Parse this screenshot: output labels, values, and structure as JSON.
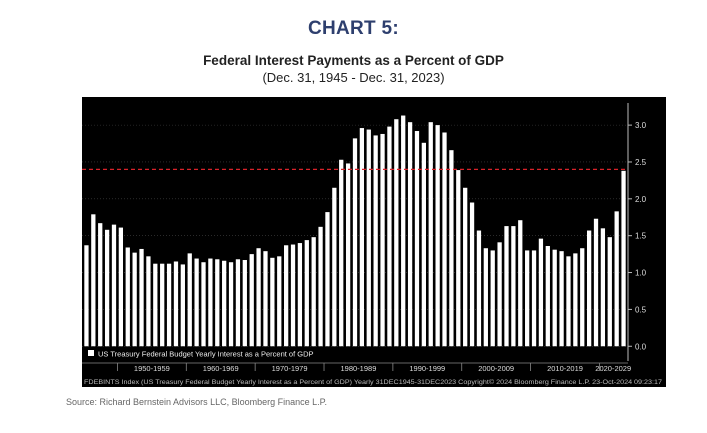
{
  "header": {
    "heading": "CHART 5:",
    "title": "Federal Interest Payments as a Percent of GDP",
    "subtitle": "(Dec. 31, 1945 - Dec. 31, 2023)"
  },
  "source": "Source: Richard Bernstein Advisors LLC, Bloomberg Finance L.P.",
  "chart_data": {
    "type": "bar",
    "legend": {
      "label": "US Treasury Federal Budget Yearly Interest as a Percent of GDP",
      "placement": "bottom-left"
    },
    "footer_text": "FDEBINTS Index (US Treasury Federal Budget Yearly Interest as a Percent of GDP)  Yearly 31DEC1945-31DEC2023   Copyright© 2024 Bloomberg Finance L.P.   23-Oct-2024 09:23:17",
    "y_axis": {
      "side": "right",
      "ylim": [
        -0.2,
        3.3
      ],
      "ticks": [
        0.0,
        0.5,
        1.0,
        1.5,
        2.0,
        2.5,
        3.0
      ],
      "tick_labels": [
        "0.0",
        "0.5",
        "1.0",
        "1.5",
        "2.0",
        "2.5",
        "3.0"
      ]
    },
    "reference_line": {
      "value": 2.4,
      "style": "dashed",
      "color": "#d9232a"
    },
    "decades": [
      "1950-1959",
      "1960-1969",
      "1970-1979",
      "1980-1989",
      "1990-1999",
      "2000-2009",
      "2010-2019",
      "2020-2029"
    ],
    "x_start": 1945,
    "x_end": 2023,
    "values": [
      1.37,
      1.79,
      1.67,
      1.58,
      1.65,
      1.61,
      1.34,
      1.27,
      1.32,
      1.22,
      1.12,
      1.12,
      1.12,
      1.15,
      1.11,
      1.26,
      1.19,
      1.14,
      1.19,
      1.18,
      1.16,
      1.14,
      1.18,
      1.17,
      1.25,
      1.33,
      1.29,
      1.2,
      1.22,
      1.37,
      1.38,
      1.4,
      1.44,
      1.48,
      1.62,
      1.82,
      2.15,
      2.53,
      2.48,
      2.82,
      2.96,
      2.94,
      2.86,
      2.88,
      2.98,
      3.08,
      3.13,
      3.04,
      2.92,
      2.76,
      3.04,
      3.0,
      2.9,
      2.66,
      2.39,
      2.15,
      1.95,
      1.57,
      1.33,
      1.3,
      1.41,
      1.63,
      1.63,
      1.71,
      1.3,
      1.3,
      1.46,
      1.36,
      1.31,
      1.29,
      1.22,
      1.26,
      1.33,
      1.57,
      1.73,
      1.6,
      1.48,
      1.83,
      2.38
    ],
    "bar_color": "#ffffff",
    "background": "#000000"
  }
}
